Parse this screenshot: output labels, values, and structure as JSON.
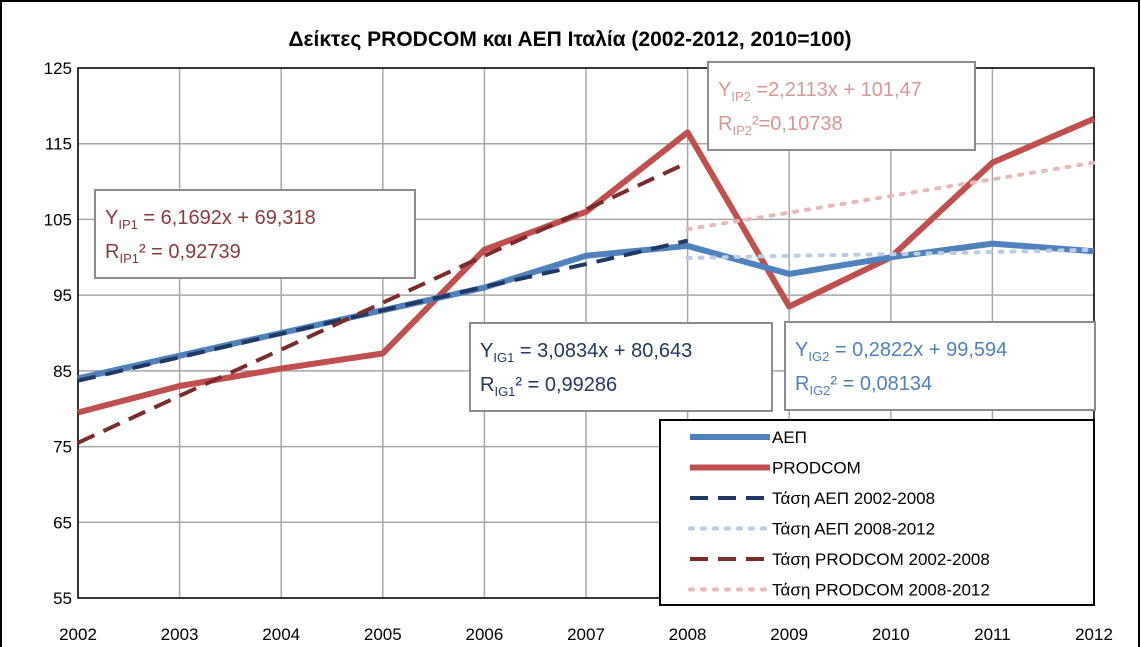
{
  "chart_data": {
    "type": "line",
    "title": "Δείκτες PRODCOM και ΑΕΠ Ιταλία (2002-2012, 2010=100)",
    "categories": [
      "2002",
      "2003",
      "2004",
      "2005",
      "2006",
      "2007",
      "2008",
      "2009",
      "2010",
      "2011",
      "2012"
    ],
    "ylim": [
      55,
      125
    ],
    "yticks": [
      55,
      65,
      75,
      85,
      95,
      105,
      115,
      125
    ],
    "grid": true,
    "legend": "bottom-right",
    "series": [
      {
        "name": "ΑΕΠ",
        "color": "#4f81bd",
        "style": "solid",
        "values": [
          84,
          87,
          90,
          93,
          96,
          100.2,
          101.5,
          97.8,
          100,
          101.8,
          100.8
        ]
      },
      {
        "name": "PRODCOM",
        "color": "#c0504d",
        "style": "solid",
        "values": [
          79.5,
          83,
          85.3,
          87.3,
          101,
          106,
          116.5,
          93.5,
          100,
          112.5,
          118.3
        ]
      },
      {
        "name": "Τάση ΑΕΠ 2002-2008",
        "color": "#1f3864",
        "style": "dashed",
        "values": [
          83.7,
          86.8,
          89.9,
          93,
          96.1,
          99.1,
          102.2,
          null,
          null,
          null,
          null
        ]
      },
      {
        "name": "Τάση ΑΕΠ 2008-2012",
        "color": "#b8cce4",
        "style": "dotted",
        "values": [
          null,
          null,
          null,
          null,
          null,
          null,
          99.9,
          100.2,
          100.4,
          100.7,
          101
        ]
      },
      {
        "name": "Τάση PRODCOM 2002-2008",
        "color": "#7b2c2a",
        "style": "dashed",
        "values": [
          75.5,
          81.7,
          87.8,
          94,
          100.2,
          106.3,
          112.5,
          null,
          null,
          null,
          null
        ]
      },
      {
        "name": "Τάση PRODCOM 2008-2012",
        "color": "#e6b9b8",
        "style": "dotted",
        "values": [
          null,
          null,
          null,
          null,
          null,
          null,
          103.7,
          105.9,
          108.1,
          110.3,
          112.5
        ]
      }
    ],
    "annotations": [
      {
        "color": "#8b3a3a",
        "lines": [
          {
            "main": "Y",
            "sub": "IP1",
            "rest": " = 6,1692x + 69,318"
          },
          {
            "main": "R",
            "sub": "IP1",
            "rest": "² = 0,92739"
          }
        ]
      },
      {
        "color": "#d99694",
        "lines": [
          {
            "main": "Y",
            "sub": "IP2",
            "rest": " =2,2113x + 101,47"
          },
          {
            "main": "R",
            "sub": "IP2",
            "rest": "²=0,10738"
          }
        ]
      },
      {
        "color": "#1f3864",
        "lines": [
          {
            "main": "Y",
            "sub": "IG1",
            "rest": " = 3,0834x + 80,643"
          },
          {
            "main": "R",
            "sub": "IG1",
            "rest": "² = 0,99286"
          }
        ]
      },
      {
        "color": "#4f81bd",
        "lines": [
          {
            "main": "Y",
            "sub": "IG2",
            "rest": " = 0,2822x + 99,594"
          },
          {
            "main": "R",
            "sub": "IG2",
            "rest": "² = 0,08134"
          }
        ]
      }
    ]
  }
}
